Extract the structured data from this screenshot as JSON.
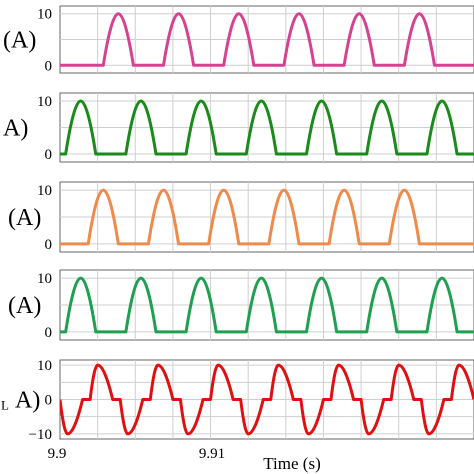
{
  "chart_data": [
    {
      "type": "line",
      "ylabel": "(A)",
      "yticks": [
        "10",
        "0"
      ],
      "ylim": [
        -1.5,
        11.5
      ],
      "xlim": [
        9.9,
        9.922
      ],
      "grid": true,
      "series": [
        {
          "color": "#d6428f",
          "x": [
            9.9,
            9.9023,
            9.9031,
            9.9039,
            9.9055,
            9.9063,
            9.9071,
            9.9087,
            9.9095,
            9.9103,
            9.9119,
            9.9127,
            9.9135,
            9.9151,
            9.9159,
            9.9167,
            9.9183,
            9.9191,
            9.9199,
            9.922
          ],
          "y": [
            0,
            0,
            10,
            0,
            0,
            10,
            0,
            0,
            10,
            0,
            0,
            10,
            0,
            0,
            10,
            0,
            0,
            10,
            0,
            0
          ]
        }
      ]
    },
    {
      "type": "line",
      "ylabel": "A)",
      "yticks": [
        "10",
        "0"
      ],
      "ylim": [
        -1.5,
        11.5
      ],
      "xlim": [
        9.9,
        9.922
      ],
      "grid": true,
      "series": [
        {
          "color": "#1a8a1a",
          "x": [
            9.9,
            9.9003,
            9.9011,
            9.9019,
            9.9035,
            9.9043,
            9.9051,
            9.9067,
            9.9075,
            9.9083,
            9.9099,
            9.9107,
            9.9115,
            9.9131,
            9.9139,
            9.9147,
            9.9163,
            9.9171,
            9.9179,
            9.9195,
            9.9203,
            9.9211,
            9.922
          ],
          "y": [
            0,
            0,
            10,
            0,
            0,
            10,
            0,
            0,
            10,
            0,
            0,
            10,
            0,
            0,
            10,
            0,
            0,
            10,
            0,
            0,
            10,
            0,
            0
          ]
        }
      ]
    },
    {
      "type": "line",
      "ylabel": "(A)",
      "yticks": [
        "10",
        "0"
      ],
      "ylim": [
        -1.5,
        11.5
      ],
      "xlim": [
        9.9,
        9.922
      ],
      "grid": true,
      "series": [
        {
          "color": "#f08a4b",
          "x": [
            9.9,
            9.9015,
            9.9023,
            9.9031,
            9.9047,
            9.9055,
            9.9063,
            9.9079,
            9.9087,
            9.9095,
            9.9111,
            9.9119,
            9.9127,
            9.9143,
            9.9151,
            9.9159,
            9.9175,
            9.9183,
            9.9191,
            9.922
          ],
          "y": [
            0,
            0,
            10,
            0,
            0,
            10,
            0,
            0,
            10,
            0,
            0,
            10,
            0,
            0,
            10,
            0,
            0,
            10,
            0,
            0
          ]
        }
      ]
    },
    {
      "type": "line",
      "ylabel": "(A)",
      "yticks": [
        "10",
        "0"
      ],
      "ylim": [
        -1.5,
        11.5
      ],
      "xlim": [
        9.9,
        9.922
      ],
      "grid": true,
      "series": [
        {
          "color": "#1fa050",
          "x": [
            9.9,
            9.9003,
            9.9011,
            9.9019,
            9.9035,
            9.9043,
            9.9051,
            9.9067,
            9.9075,
            9.9083,
            9.9099,
            9.9107,
            9.9115,
            9.9131,
            9.9139,
            9.9147,
            9.9163,
            9.9171,
            9.9179,
            9.9195,
            9.9203,
            9.9211,
            9.922
          ],
          "y": [
            0,
            0,
            10,
            0,
            0,
            10,
            0,
            0,
            10,
            0,
            0,
            10,
            0,
            0,
            10,
            0,
            0,
            10,
            0,
            0,
            10,
            0,
            0
          ]
        }
      ]
    },
    {
      "type": "line",
      "ylabel": "A)",
      "ylabel_prefix": "L",
      "yticks": [
        "10",
        "0",
        "−10"
      ],
      "ylim": [
        -11.5,
        11.5
      ],
      "xlim": [
        9.9,
        9.922
      ],
      "xticks": [
        "9.9",
        "9.91"
      ],
      "xlabel": "Time (s)",
      "grid": true,
      "series": [
        {
          "color": "#e01010",
          "x": [
            9.9,
            9.9004,
            9.9012,
            9.9016,
            9.902,
            9.9028,
            9.9032,
            9.9036,
            9.9044,
            9.9048,
            9.9052,
            9.906,
            9.9064,
            9.9068,
            9.9076,
            9.908,
            9.9084,
            9.9092,
            9.9096,
            9.91,
            9.9108,
            9.9112,
            9.9116,
            9.9124,
            9.9128,
            9.9132,
            9.914,
            9.9144,
            9.9148,
            9.9156,
            9.916,
            9.9164,
            9.9172,
            9.9176,
            9.918,
            9.9188,
            9.9192,
            9.9196,
            9.9204,
            9.9208,
            9.9212,
            9.922
          ],
          "y": [
            0,
            -10,
            0,
            0,
            10,
            0,
            0,
            -10,
            0,
            0,
            10,
            0,
            0,
            -10,
            0,
            0,
            10,
            0,
            0,
            -10,
            0,
            0,
            10,
            0,
            0,
            -10,
            0,
            0,
            10,
            0,
            0,
            -10,
            0,
            0,
            10,
            0,
            0,
            -10,
            0,
            0,
            10,
            0
          ]
        }
      ]
    }
  ]
}
